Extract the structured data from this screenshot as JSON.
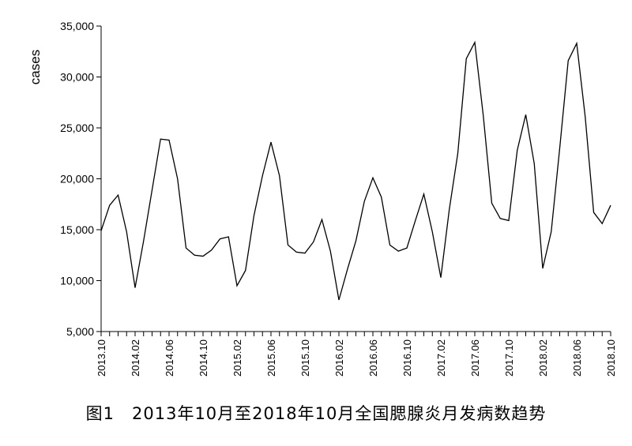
{
  "caption": "图1　2013年10月至2018年10月全国腮腺炎月发病数趋势",
  "chart_data": {
    "type": "line",
    "title": "",
    "xlabel": "",
    "ylabel": "cases",
    "ylim": [
      5000,
      35000
    ],
    "yticks": [
      "5,000",
      "10,000",
      "15,000",
      "20,000",
      "25,000",
      "30,000",
      "35,000"
    ],
    "xtick_labels": [
      "2013.10",
      "2014.02",
      "2014.06",
      "2014.10",
      "2015.02",
      "2015.06",
      "2015.10",
      "2016.02",
      "2016.06",
      "2016.10",
      "2017.02",
      "2017.06",
      "2017.10",
      "2018.02",
      "2018.06",
      "2018.10"
    ],
    "grid": false,
    "legend": "none",
    "line_color": "#000000",
    "categories": [
      "2013.10",
      "2013.11",
      "2013.12",
      "2014.01",
      "2014.02",
      "2014.03",
      "2014.04",
      "2014.05",
      "2014.06",
      "2014.07",
      "2014.08",
      "2014.09",
      "2014.10",
      "2014.11",
      "2014.12",
      "2015.01",
      "2015.02",
      "2015.03",
      "2015.04",
      "2015.05",
      "2015.06",
      "2015.07",
      "2015.08",
      "2015.09",
      "2015.10",
      "2015.11",
      "2015.12",
      "2016.01",
      "2016.02",
      "2016.03",
      "2016.04",
      "2016.05",
      "2016.06",
      "2016.07",
      "2016.08",
      "2016.09",
      "2016.10",
      "2016.11",
      "2016.12",
      "2017.01",
      "2017.02",
      "2017.03",
      "2017.04",
      "2017.05",
      "2017.06",
      "2017.07",
      "2017.08",
      "2017.09",
      "2017.10",
      "2017.11",
      "2017.12",
      "2018.01",
      "2018.02",
      "2018.03",
      "2018.04",
      "2018.05",
      "2018.06",
      "2018.07",
      "2018.08",
      "2018.09",
      "2018.10"
    ],
    "series": [
      {
        "values": [
          14900,
          17400,
          18400,
          14800,
          9300,
          13900,
          18900,
          23900,
          23800,
          20000,
          13200,
          12500,
          12400,
          13000,
          14100,
          14300,
          9500,
          11000,
          16400,
          20300,
          23600,
          20300,
          13500,
          12800,
          12700,
          13800,
          16000,
          12900,
          8100,
          11100,
          13900,
          17800,
          20100,
          18200,
          13500,
          12900,
          13200,
          15900,
          18500,
          14800,
          10300,
          17000,
          22500,
          31800,
          33400,
          26200,
          17600,
          16100,
          15900,
          22800,
          26300,
          21500,
          11200,
          14800,
          23000,
          31600,
          33300,
          26100,
          16700,
          15600,
          17400
        ]
      }
    ]
  }
}
